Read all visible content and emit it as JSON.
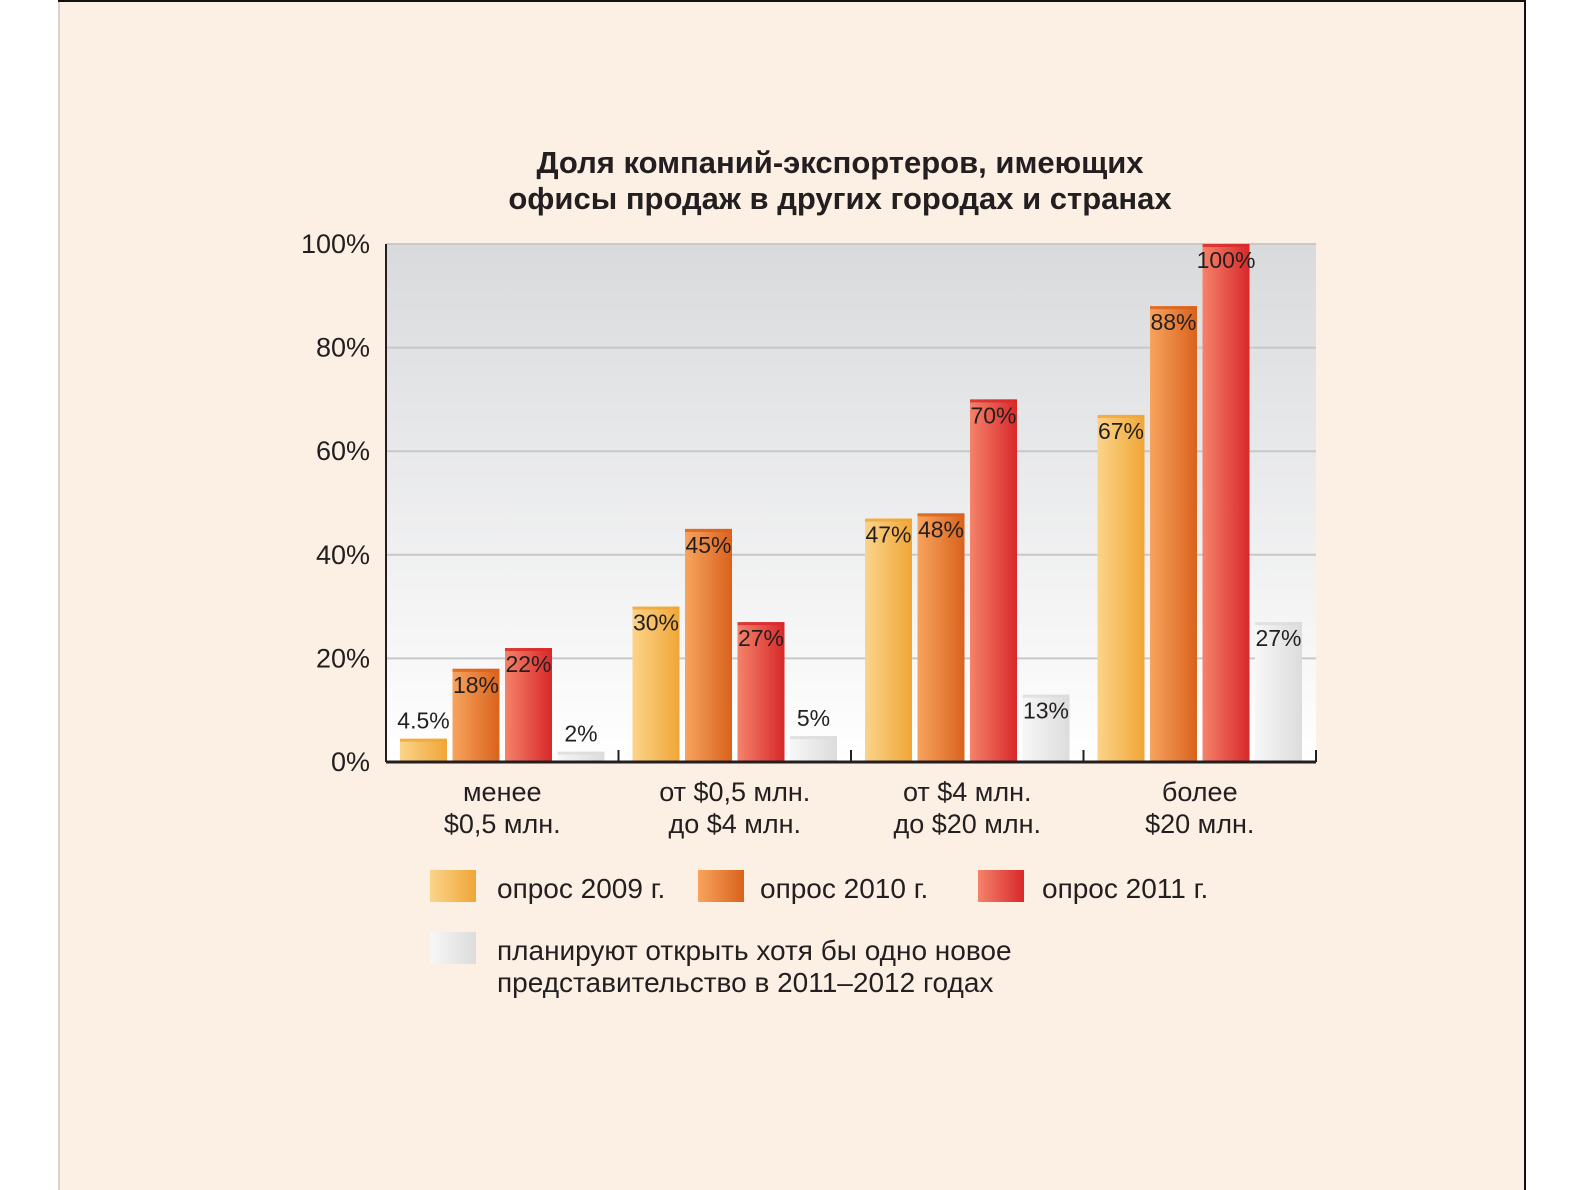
{
  "chart_data": {
    "type": "bar",
    "title_lines": [
      "Доля компаний-экспортеров, имеющих",
      "офисы продаж в других городах и странах"
    ],
    "categories": [
      [
        "менее",
        "$0,5 млн."
      ],
      [
        "от $0,5 млн.",
        "до $4 млн."
      ],
      [
        "от $4 млн.",
        "до $20 млн."
      ],
      [
        "более",
        "$20 млн."
      ]
    ],
    "series": [
      {
        "name": "опрос 2009 г.",
        "values": [
          4.5,
          30,
          47,
          67
        ],
        "labels": [
          "4.5%",
          "30%",
          "47%",
          "67%"
        ],
        "colors": [
          "#fbd48a",
          "#f0a637"
        ]
      },
      {
        "name": "опрос 2010 г.",
        "values": [
          18,
          45,
          48,
          88
        ],
        "labels": [
          "18%",
          "45%",
          "48%",
          "88%"
        ],
        "colors": [
          "#f7a45e",
          "#d9621c"
        ]
      },
      {
        "name": "опрос 2011 г.",
        "values": [
          22,
          27,
          70,
          100
        ],
        "labels": [
          "22%",
          "27%",
          "70%",
          "100%"
        ],
        "colors": [
          "#f5836a",
          "#d8282a"
        ]
      },
      {
        "name_lines": [
          "планируют открыть хотя бы одно новое",
          "представительство в 2011–2012 годах"
        ],
        "values": [
          2,
          5,
          13,
          27
        ],
        "labels": [
          "2%",
          "5%",
          "13%",
          "27%"
        ],
        "colors": [
          "#f7f7f7",
          "#dcdcdc"
        ]
      }
    ],
    "yticks": [
      "0%",
      "20%",
      "40%",
      "60%",
      "80%",
      "100%"
    ],
    "ylim": [
      0,
      100
    ],
    "xlabel": "",
    "ylabel": "",
    "grid": true,
    "legend_position": "bottom"
  }
}
